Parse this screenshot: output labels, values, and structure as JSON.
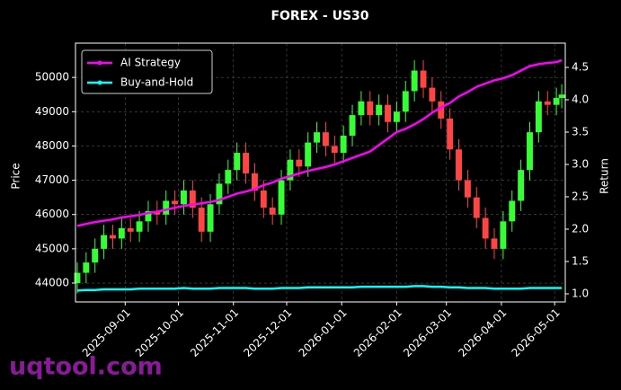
{
  "chart_data": {
    "type": "candlestick",
    "title": "FOREX - US30",
    "ylabel": "Price",
    "y2label": "Return",
    "watermark": "uqtool.com",
    "x": [
      "2025-08-05",
      "2025-08-10",
      "2025-08-15",
      "2025-08-20",
      "2025-08-25",
      "2025-08-30",
      "2025-09-04",
      "2025-09-09",
      "2025-09-14",
      "2025-09-19",
      "2025-09-24",
      "2025-09-29",
      "2025-10-04",
      "2025-10-09",
      "2025-10-14",
      "2025-10-19",
      "2025-10-24",
      "2025-10-29",
      "2025-11-03",
      "2025-11-08",
      "2025-11-13",
      "2025-11-18",
      "2025-11-23",
      "2025-11-28",
      "2025-12-03",
      "2025-12-08",
      "2025-12-13",
      "2025-12-18",
      "2025-12-23",
      "2025-12-28",
      "2026-01-02",
      "2026-01-07",
      "2026-01-12",
      "2026-01-17",
      "2026-01-22",
      "2026-01-27",
      "2026-02-01",
      "2026-02-06",
      "2026-02-11",
      "2026-02-16",
      "2026-02-21",
      "2026-02-26",
      "2026-03-03",
      "2026-03-08",
      "2026-03-13",
      "2026-03-18",
      "2026-03-23",
      "2026-03-28",
      "2026-04-02",
      "2026-04-07",
      "2026-04-12",
      "2026-04-17",
      "2026-04-22",
      "2026-04-27",
      "2026-05-02",
      "2026-05-05"
    ],
    "open": [
      44000,
      44300,
      44600,
      45000,
      45400,
      45300,
      45600,
      45500,
      45800,
      46100,
      46000,
      46400,
      46300,
      46700,
      46200,
      45500,
      46300,
      46900,
      47300,
      47800,
      47200,
      46700,
      46200,
      46000,
      47000,
      47600,
      47400,
      48100,
      48400,
      48000,
      47800,
      48300,
      48900,
      49300,
      48900,
      49200,
      48700,
      49000,
      49600,
      50200,
      49700,
      49300,
      48800,
      47900,
      47000,
      46500,
      45900,
      45300,
      45000,
      45800,
      46400,
      47300,
      48400,
      49300,
      49200,
      49400
    ],
    "high": [
      44600,
      44900,
      45300,
      45700,
      45700,
      45900,
      45900,
      46100,
      46400,
      46400,
      46700,
      46700,
      47000,
      47000,
      46500,
      46600,
      47200,
      47600,
      48100,
      48100,
      47500,
      47000,
      46500,
      47300,
      47900,
      47900,
      48400,
      48700,
      48700,
      48300,
      48600,
      49200,
      49600,
      49600,
      49500,
      49500,
      49300,
      49900,
      50500,
      50500,
      50000,
      49600,
      49100,
      48200,
      47300,
      46800,
      46200,
      45600,
      46100,
      46700,
      47600,
      48700,
      49600,
      49600,
      49700,
      49800
    ],
    "low": [
      43700,
      44000,
      44300,
      44700,
      45000,
      45000,
      45200,
      45200,
      45500,
      45700,
      45700,
      46000,
      46000,
      45900,
      45200,
      45200,
      46000,
      46600,
      47000,
      46900,
      46400,
      45900,
      45700,
      45700,
      46700,
      47100,
      47100,
      47800,
      47700,
      47500,
      47500,
      48000,
      48600,
      48600,
      48600,
      48400,
      48400,
      48700,
      49300,
      49400,
      49000,
      48500,
      47600,
      46700,
      46200,
      45600,
      45000,
      44700,
      44700,
      45500,
      46100,
      47000,
      48100,
      48900,
      48900,
      49100
    ],
    "close": [
      44300,
      44600,
      45000,
      45400,
      45300,
      45600,
      45500,
      45800,
      46100,
      46000,
      46400,
      46300,
      46700,
      46200,
      45500,
      46300,
      46900,
      47300,
      47800,
      47200,
      46700,
      46200,
      46000,
      47000,
      47600,
      47400,
      48100,
      48400,
      48000,
      47800,
      48300,
      48900,
      49300,
      48900,
      49200,
      48700,
      49000,
      49600,
      50200,
      49700,
      49300,
      48800,
      47900,
      47000,
      46500,
      45900,
      45300,
      45000,
      45800,
      46400,
      47300,
      48400,
      49300,
      49200,
      49400,
      49500
    ],
    "up_color": "#33ff33",
    "down_color": "#ff4444",
    "series": [
      {
        "name": "AI Strategy",
        "color": "#ff00ff",
        "axis": "y2",
        "values": [
          2.05,
          2.08,
          2.11,
          2.13,
          2.15,
          2.18,
          2.2,
          2.22,
          2.25,
          2.27,
          2.3,
          2.33,
          2.36,
          2.38,
          2.4,
          2.42,
          2.45,
          2.5,
          2.55,
          2.58,
          2.62,
          2.68,
          2.72,
          2.78,
          2.82,
          2.86,
          2.9,
          2.93,
          2.96,
          3.0,
          3.05,
          3.1,
          3.15,
          3.2,
          3.3,
          3.4,
          3.5,
          3.55,
          3.62,
          3.7,
          3.8,
          3.88,
          3.95,
          4.05,
          4.12,
          4.2,
          4.25,
          4.3,
          4.33,
          4.38,
          4.45,
          4.52,
          4.55,
          4.57,
          4.58,
          4.61
        ]
      },
      {
        "name": "Buy-and-Hold",
        "color": "#00ffff",
        "axis": "y2",
        "values": [
          1.05,
          1.06,
          1.06,
          1.07,
          1.07,
          1.07,
          1.07,
          1.08,
          1.08,
          1.08,
          1.08,
          1.08,
          1.09,
          1.08,
          1.08,
          1.08,
          1.09,
          1.09,
          1.09,
          1.09,
          1.08,
          1.08,
          1.08,
          1.09,
          1.09,
          1.09,
          1.1,
          1.1,
          1.1,
          1.1,
          1.1,
          1.1,
          1.11,
          1.11,
          1.11,
          1.11,
          1.11,
          1.11,
          1.12,
          1.12,
          1.11,
          1.11,
          1.1,
          1.1,
          1.09,
          1.09,
          1.09,
          1.08,
          1.08,
          1.08,
          1.08,
          1.09,
          1.09,
          1.09,
          1.09,
          1.09
        ]
      }
    ],
    "xlim": [
      "2025-08-04",
      "2026-05-07"
    ],
    "xticks": [
      "2025-09-01",
      "2025-10-01",
      "2025-11-01",
      "2025-12-01",
      "2026-01-01",
      "2026-02-01",
      "2026-03-01",
      "2026-04-01",
      "2026-05-01"
    ],
    "ylim": [
      43450,
      51000
    ],
    "yticks": [
      44000,
      45000,
      46000,
      47000,
      48000,
      49000,
      50000
    ],
    "y2lim": [
      0.875,
      4.875
    ],
    "y2ticks": [
      {
        "value": 1,
        "label": "1.0"
      },
      1.5,
      {
        "value": 2,
        "label": "2.0"
      },
      2.5,
      {
        "value": 3,
        "label": "3.0"
      },
      3.5,
      {
        "value": 4,
        "label": "4.0"
      },
      4.5
    ],
    "grid": true,
    "legend": "upper-left"
  }
}
